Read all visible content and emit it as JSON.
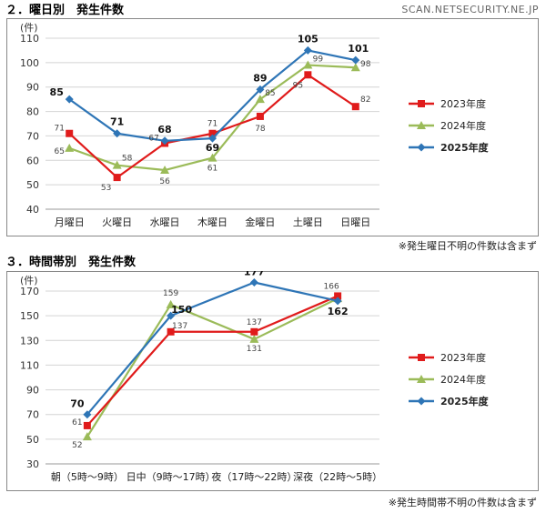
{
  "watermark": "SCAN.NETSECURITY.NE.JP",
  "colors": {
    "2023": "#e01b1b",
    "2024": "#9bbb59",
    "2025": "#2e75b6",
    "frame": "#888888",
    "grid": "#d4d4d4"
  },
  "charts": [
    {
      "heading": "２．曜日別　発生件数",
      "note": "※発生曜日不明の件数は含まず",
      "chart_data": {
        "type": "line",
        "unit_label": "(件)",
        "categories": [
          "月曜日",
          "火曜日",
          "水曜日",
          "木曜日",
          "金曜日",
          "土曜日",
          "日曜日"
        ],
        "ylim": [
          40,
          110
        ],
        "yticks": [
          40,
          50,
          60,
          70,
          80,
          90,
          100,
          110
        ],
        "grid": true,
        "legend_position": "right",
        "series": [
          {
            "name": "2023年度",
            "values": [
              71,
              53,
              67,
              71,
              78,
              95,
              82
            ],
            "labels": [
              "71",
              "53",
              "67",
              "71",
              "78",
              "95",
              "82"
            ]
          },
          {
            "name": "2024年度",
            "values": [
              65,
              58,
              56,
              61,
              85,
              99,
              98
            ],
            "labels": [
              "65",
              "58",
              "56",
              "61",
              "85",
              "99",
              "98"
            ]
          },
          {
            "name": "2025年度",
            "values": [
              85,
              71,
              68,
              69,
              89,
              105,
              101
            ],
            "labels": [
              "85",
              "71",
              "68",
              "69",
              "89",
              "105",
              "101"
            ]
          }
        ]
      }
    },
    {
      "heading": "３．時間帯別　発生件数",
      "note": "※発生時間帯不明の件数は含まず",
      "chart_data": {
        "type": "line",
        "unit_label": "(件)",
        "categories": [
          "朝（5時～9時）",
          "日中（9時～17時）",
          "夜（17時～22時）",
          "深夜（22時～5時）"
        ],
        "ylim": [
          30,
          170
        ],
        "yticks": [
          30,
          50,
          70,
          90,
          110,
          130,
          150,
          170
        ],
        "grid": true,
        "legend_position": "right",
        "series": [
          {
            "name": "2023年度",
            "values": [
              61,
              137,
              137,
              166
            ],
            "labels": [
              "61",
              "137",
              "137",
              "166"
            ]
          },
          {
            "name": "2024年度",
            "values": [
              52,
              159,
              131,
              164
            ],
            "labels": [
              "52",
              "159",
              "131",
              ""
            ]
          },
          {
            "name": "2025年度",
            "values": [
              70,
              150,
              177,
              162
            ],
            "labels": [
              "70",
              "150",
              "177",
              "162"
            ]
          }
        ]
      }
    }
  ]
}
